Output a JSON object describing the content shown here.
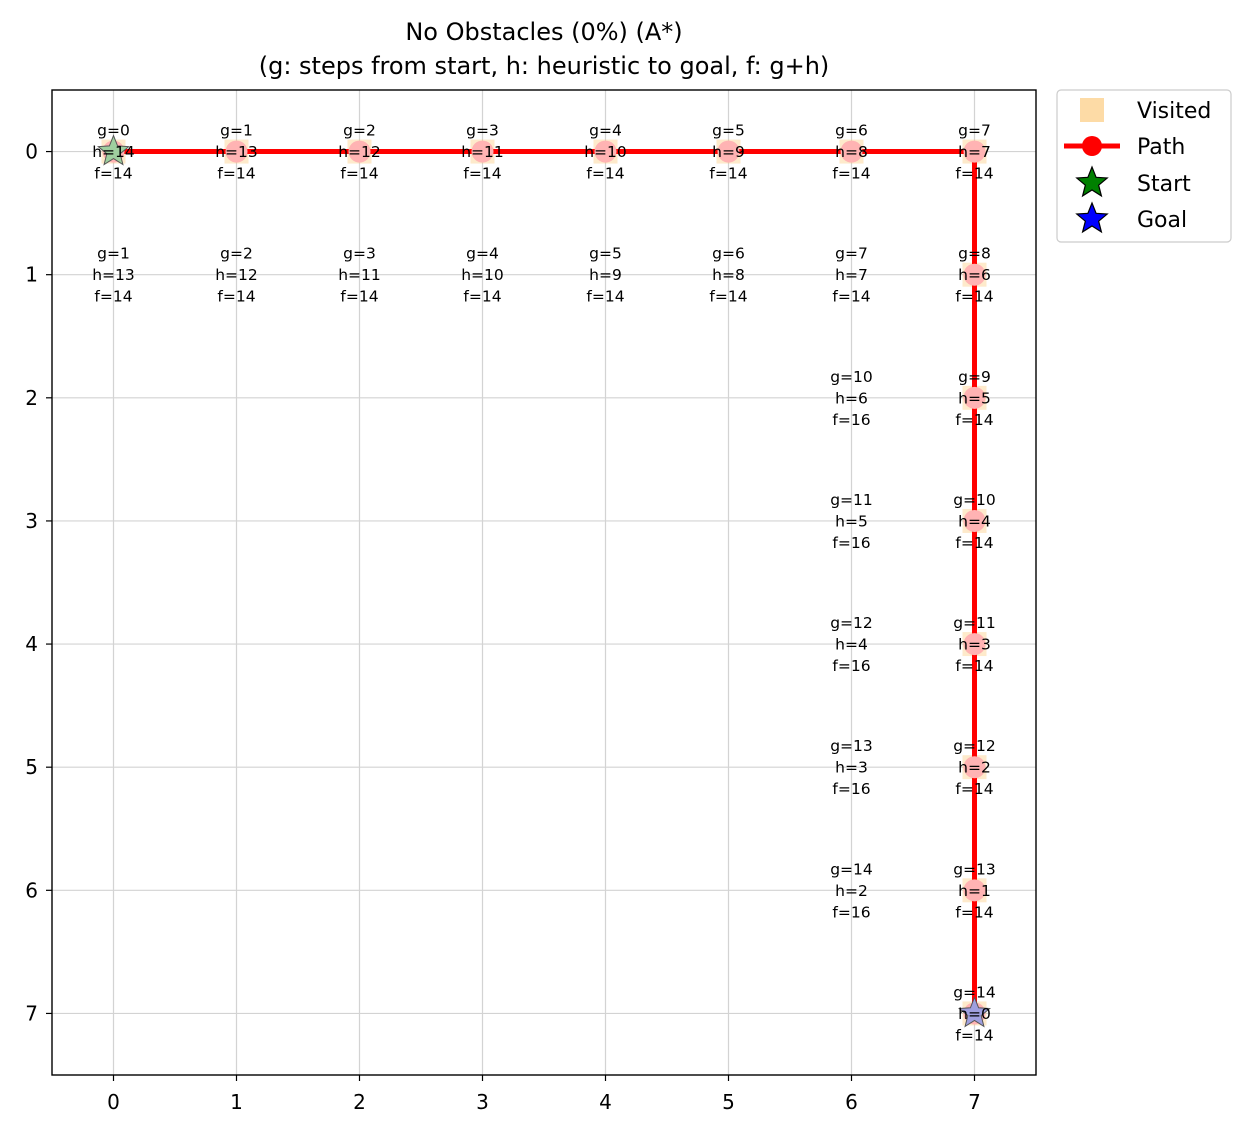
{
  "chart_data": {
    "type": "scatter",
    "title": "No Obstacles (0%) (A*)",
    "subtitle": "(g: steps from start, h: heuristic to goal, f: g+h)",
    "xlabel": "",
    "ylabel": "",
    "xlim": [
      -0.5,
      7.5
    ],
    "ylim": [
      7.5,
      -0.5
    ],
    "x_ticks": [
      "0",
      "1",
      "2",
      "3",
      "4",
      "5",
      "6",
      "7"
    ],
    "y_ticks": [
      "0",
      "1",
      "2",
      "3",
      "4",
      "5",
      "6",
      "7"
    ],
    "grid": true,
    "legend_position": "outside-top-right",
    "legend": [
      {
        "key": "visited",
        "label": "Visited",
        "marker": "square",
        "color": "#fbc36a"
      },
      {
        "key": "path",
        "label": "Path",
        "marker": "line-circle",
        "color": "#ff0000"
      },
      {
        "key": "start",
        "label": "Start",
        "marker": "star",
        "color": "#008000"
      },
      {
        "key": "goal",
        "label": "Goal",
        "marker": "star",
        "color": "#0000ff"
      }
    ],
    "colors": {
      "visited": "#fbc36a",
      "path": "#ff0000",
      "start": "#008000",
      "goal": "#0000ff",
      "grid": "#d3d3d3"
    },
    "start": {
      "x": 0,
      "y": 0
    },
    "goal": {
      "x": 7,
      "y": 7
    },
    "path": [
      {
        "x": 0,
        "y": 0
      },
      {
        "x": 1,
        "y": 0
      },
      {
        "x": 2,
        "y": 0
      },
      {
        "x": 3,
        "y": 0
      },
      {
        "x": 4,
        "y": 0
      },
      {
        "x": 5,
        "y": 0
      },
      {
        "x": 6,
        "y": 0
      },
      {
        "x": 7,
        "y": 0
      },
      {
        "x": 7,
        "y": 1
      },
      {
        "x": 7,
        "y": 2
      },
      {
        "x": 7,
        "y": 3
      },
      {
        "x": 7,
        "y": 4
      },
      {
        "x": 7,
        "y": 5
      },
      {
        "x": 7,
        "y": 6
      },
      {
        "x": 7,
        "y": 7
      }
    ],
    "cells": [
      {
        "x": 0,
        "y": 0,
        "g": 0,
        "h": 14,
        "f": 14
      },
      {
        "x": 1,
        "y": 0,
        "g": 1,
        "h": 13,
        "f": 14
      },
      {
        "x": 2,
        "y": 0,
        "g": 2,
        "h": 12,
        "f": 14
      },
      {
        "x": 3,
        "y": 0,
        "g": 3,
        "h": 11,
        "f": 14
      },
      {
        "x": 4,
        "y": 0,
        "g": 4,
        "h": 10,
        "f": 14
      },
      {
        "x": 5,
        "y": 0,
        "g": 5,
        "h": 9,
        "f": 14
      },
      {
        "x": 6,
        "y": 0,
        "g": 6,
        "h": 8,
        "f": 14
      },
      {
        "x": 7,
        "y": 0,
        "g": 7,
        "h": 7,
        "f": 14
      },
      {
        "x": 0,
        "y": 1,
        "g": 1,
        "h": 13,
        "f": 14
      },
      {
        "x": 1,
        "y": 1,
        "g": 2,
        "h": 12,
        "f": 14
      },
      {
        "x": 2,
        "y": 1,
        "g": 3,
        "h": 11,
        "f": 14
      },
      {
        "x": 3,
        "y": 1,
        "g": 4,
        "h": 10,
        "f": 14
      },
      {
        "x": 4,
        "y": 1,
        "g": 5,
        "h": 9,
        "f": 14
      },
      {
        "x": 5,
        "y": 1,
        "g": 6,
        "h": 8,
        "f": 14
      },
      {
        "x": 6,
        "y": 1,
        "g": 7,
        "h": 7,
        "f": 14
      },
      {
        "x": 7,
        "y": 1,
        "g": 8,
        "h": 6,
        "f": 14
      },
      {
        "x": 6,
        "y": 2,
        "g": 10,
        "h": 6,
        "f": 16
      },
      {
        "x": 7,
        "y": 2,
        "g": 9,
        "h": 5,
        "f": 14
      },
      {
        "x": 6,
        "y": 3,
        "g": 11,
        "h": 5,
        "f": 16
      },
      {
        "x": 7,
        "y": 3,
        "g": 10,
        "h": 4,
        "f": 14
      },
      {
        "x": 6,
        "y": 4,
        "g": 12,
        "h": 4,
        "f": 16
      },
      {
        "x": 7,
        "y": 4,
        "g": 11,
        "h": 3,
        "f": 14
      },
      {
        "x": 6,
        "y": 5,
        "g": 13,
        "h": 3,
        "f": 16
      },
      {
        "x": 7,
        "y": 5,
        "g": 12,
        "h": 2,
        "f": 14
      },
      {
        "x": 6,
        "y": 6,
        "g": 14,
        "h": 2,
        "f": 16
      },
      {
        "x": 7,
        "y": 6,
        "g": 13,
        "h": 1,
        "f": 14
      },
      {
        "x": 7,
        "y": 7,
        "g": 14,
        "h": 0,
        "f": 14
      }
    ]
  }
}
